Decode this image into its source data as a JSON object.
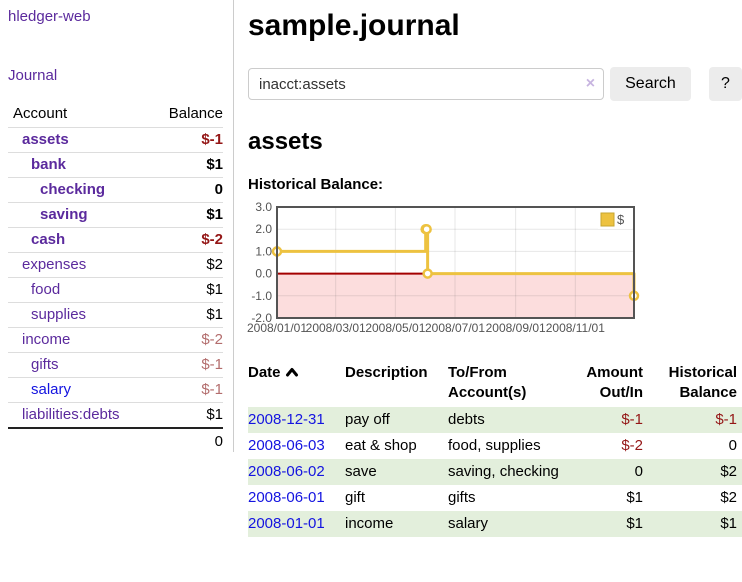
{
  "app": {
    "title": "hledger-web"
  },
  "sidebar": {
    "journal_link": "Journal",
    "accounts_table": {
      "account_header": "Account",
      "balance_header": "Balance",
      "rows": [
        {
          "name": "assets",
          "balance": "$-1",
          "level": 1,
          "bold": true,
          "visited": true
        },
        {
          "name": "bank",
          "balance": "$1",
          "level": 2,
          "bold": true,
          "visited": true
        },
        {
          "name": "checking",
          "balance": "0",
          "level": 3,
          "bold": true,
          "visited": true
        },
        {
          "name": "saving",
          "balance": "$1",
          "level": 3,
          "bold": true,
          "visited": true
        },
        {
          "name": "cash",
          "balance": "$-2",
          "level": 2,
          "bold": true,
          "visited": true
        },
        {
          "name": "expenses",
          "balance": "$2",
          "level": 1,
          "bold": false,
          "visited": true
        },
        {
          "name": "food",
          "balance": "$1",
          "level": 2,
          "bold": false,
          "visited": true
        },
        {
          "name": "supplies",
          "balance": "$1",
          "level": 2,
          "bold": false,
          "visited": true
        },
        {
          "name": "income",
          "balance": "$-2",
          "level": 1,
          "bold": false,
          "visited": true
        },
        {
          "name": "gifts",
          "balance": "$-1",
          "level": 2,
          "bold": false,
          "visited": true
        },
        {
          "name": "salary",
          "balance": "$-1",
          "level": 2,
          "bold": false,
          "visited": false
        },
        {
          "name": "liabilities:debts",
          "balance": "$1",
          "level": 1,
          "bold": false,
          "visited": true
        }
      ],
      "total": "0"
    }
  },
  "main": {
    "title": "sample.journal",
    "search": {
      "value": "inacct:assets",
      "clear_icon": "×",
      "search_label": "Search",
      "help_label": "?"
    },
    "account_heading": "assets",
    "chart_label": "Historical Balance:"
  },
  "chart_data": {
    "type": "line",
    "title": "Historical Balance:",
    "series": [
      {
        "name": "$",
        "color": "#edc240",
        "step": true,
        "points": [
          [
            "2008-01-01",
            1
          ],
          [
            "2008-06-01",
            2
          ],
          [
            "2008-06-02",
            2
          ],
          [
            "2008-06-03",
            0
          ],
          [
            "2008-12-31",
            -1
          ]
        ]
      }
    ],
    "xlim": [
      "2008-01-01",
      "2008-12-31"
    ],
    "ylim": [
      -2,
      3
    ],
    "x_ticks": [
      "2008/01/01",
      "2008/03/01",
      "2008/05/01",
      "2008/07/01",
      "2008/09/01",
      "2008/11/01"
    ],
    "y_ticks": [
      3.0,
      2.0,
      1.0,
      0.0,
      -1.0,
      -2.0
    ],
    "grid": true,
    "legend_position": "top-right",
    "border_color": "#545454",
    "tick_label_color": "#545454",
    "zero_line_color": "#a40000",
    "negative_region_color": "rgba(240,100,100,0.22)"
  },
  "register_table": {
    "headers": [
      "Date",
      "Description",
      "To/From Account(s)",
      "Amount Out/In",
      "Historical Balance"
    ],
    "sort": "ascending",
    "rows": [
      {
        "date": "2008-12-31",
        "description": "pay off",
        "accounts": "debts",
        "amount": "$-1",
        "balance": "$-1"
      },
      {
        "date": "2008-06-03",
        "description": "eat & shop",
        "accounts": "food, supplies",
        "amount": "$-2",
        "balance": "0"
      },
      {
        "date": "2008-06-02",
        "description": "save",
        "accounts": "saving, checking",
        "amount": "0",
        "balance": "$2"
      },
      {
        "date": "2008-06-01",
        "description": "gift",
        "accounts": "gifts",
        "amount": "$1",
        "balance": "$2"
      },
      {
        "date": "2008-01-01",
        "description": "income",
        "accounts": "salary",
        "amount": "$1",
        "balance": "$1"
      }
    ]
  },
  "colors": {
    "link_purple": "#5b2a9d",
    "link_blue": "#1414e0",
    "negative_strong": "#941616",
    "negative_soft": "#b36d6d",
    "row_green": "#e3efdc",
    "chart_gold": "#edc240"
  }
}
